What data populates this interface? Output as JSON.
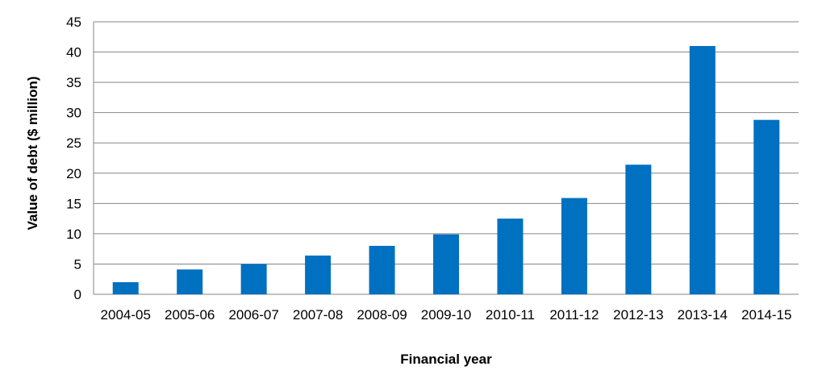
{
  "chart_data": {
    "type": "bar",
    "title": "",
    "xlabel": "Financial year",
    "ylabel": "Value of debt ($ million)",
    "categories": [
      "2004-05",
      "2005-06",
      "2006-07",
      "2007-08",
      "2008-09",
      "2009-10",
      "2010-11",
      "2011-12",
      "2012-13",
      "2013-14",
      "2014-15"
    ],
    "values": [
      2.0,
      4.1,
      5.0,
      6.4,
      8.0,
      9.9,
      12.5,
      15.9,
      21.4,
      41.0,
      28.8
    ],
    "ylim": [
      0,
      45
    ],
    "yticks": [
      0,
      5,
      10,
      15,
      20,
      25,
      30,
      35,
      40,
      45
    ],
    "grid": true,
    "legend": "none",
    "bar_color": "#0070c0",
    "grid_color": "#868686"
  }
}
